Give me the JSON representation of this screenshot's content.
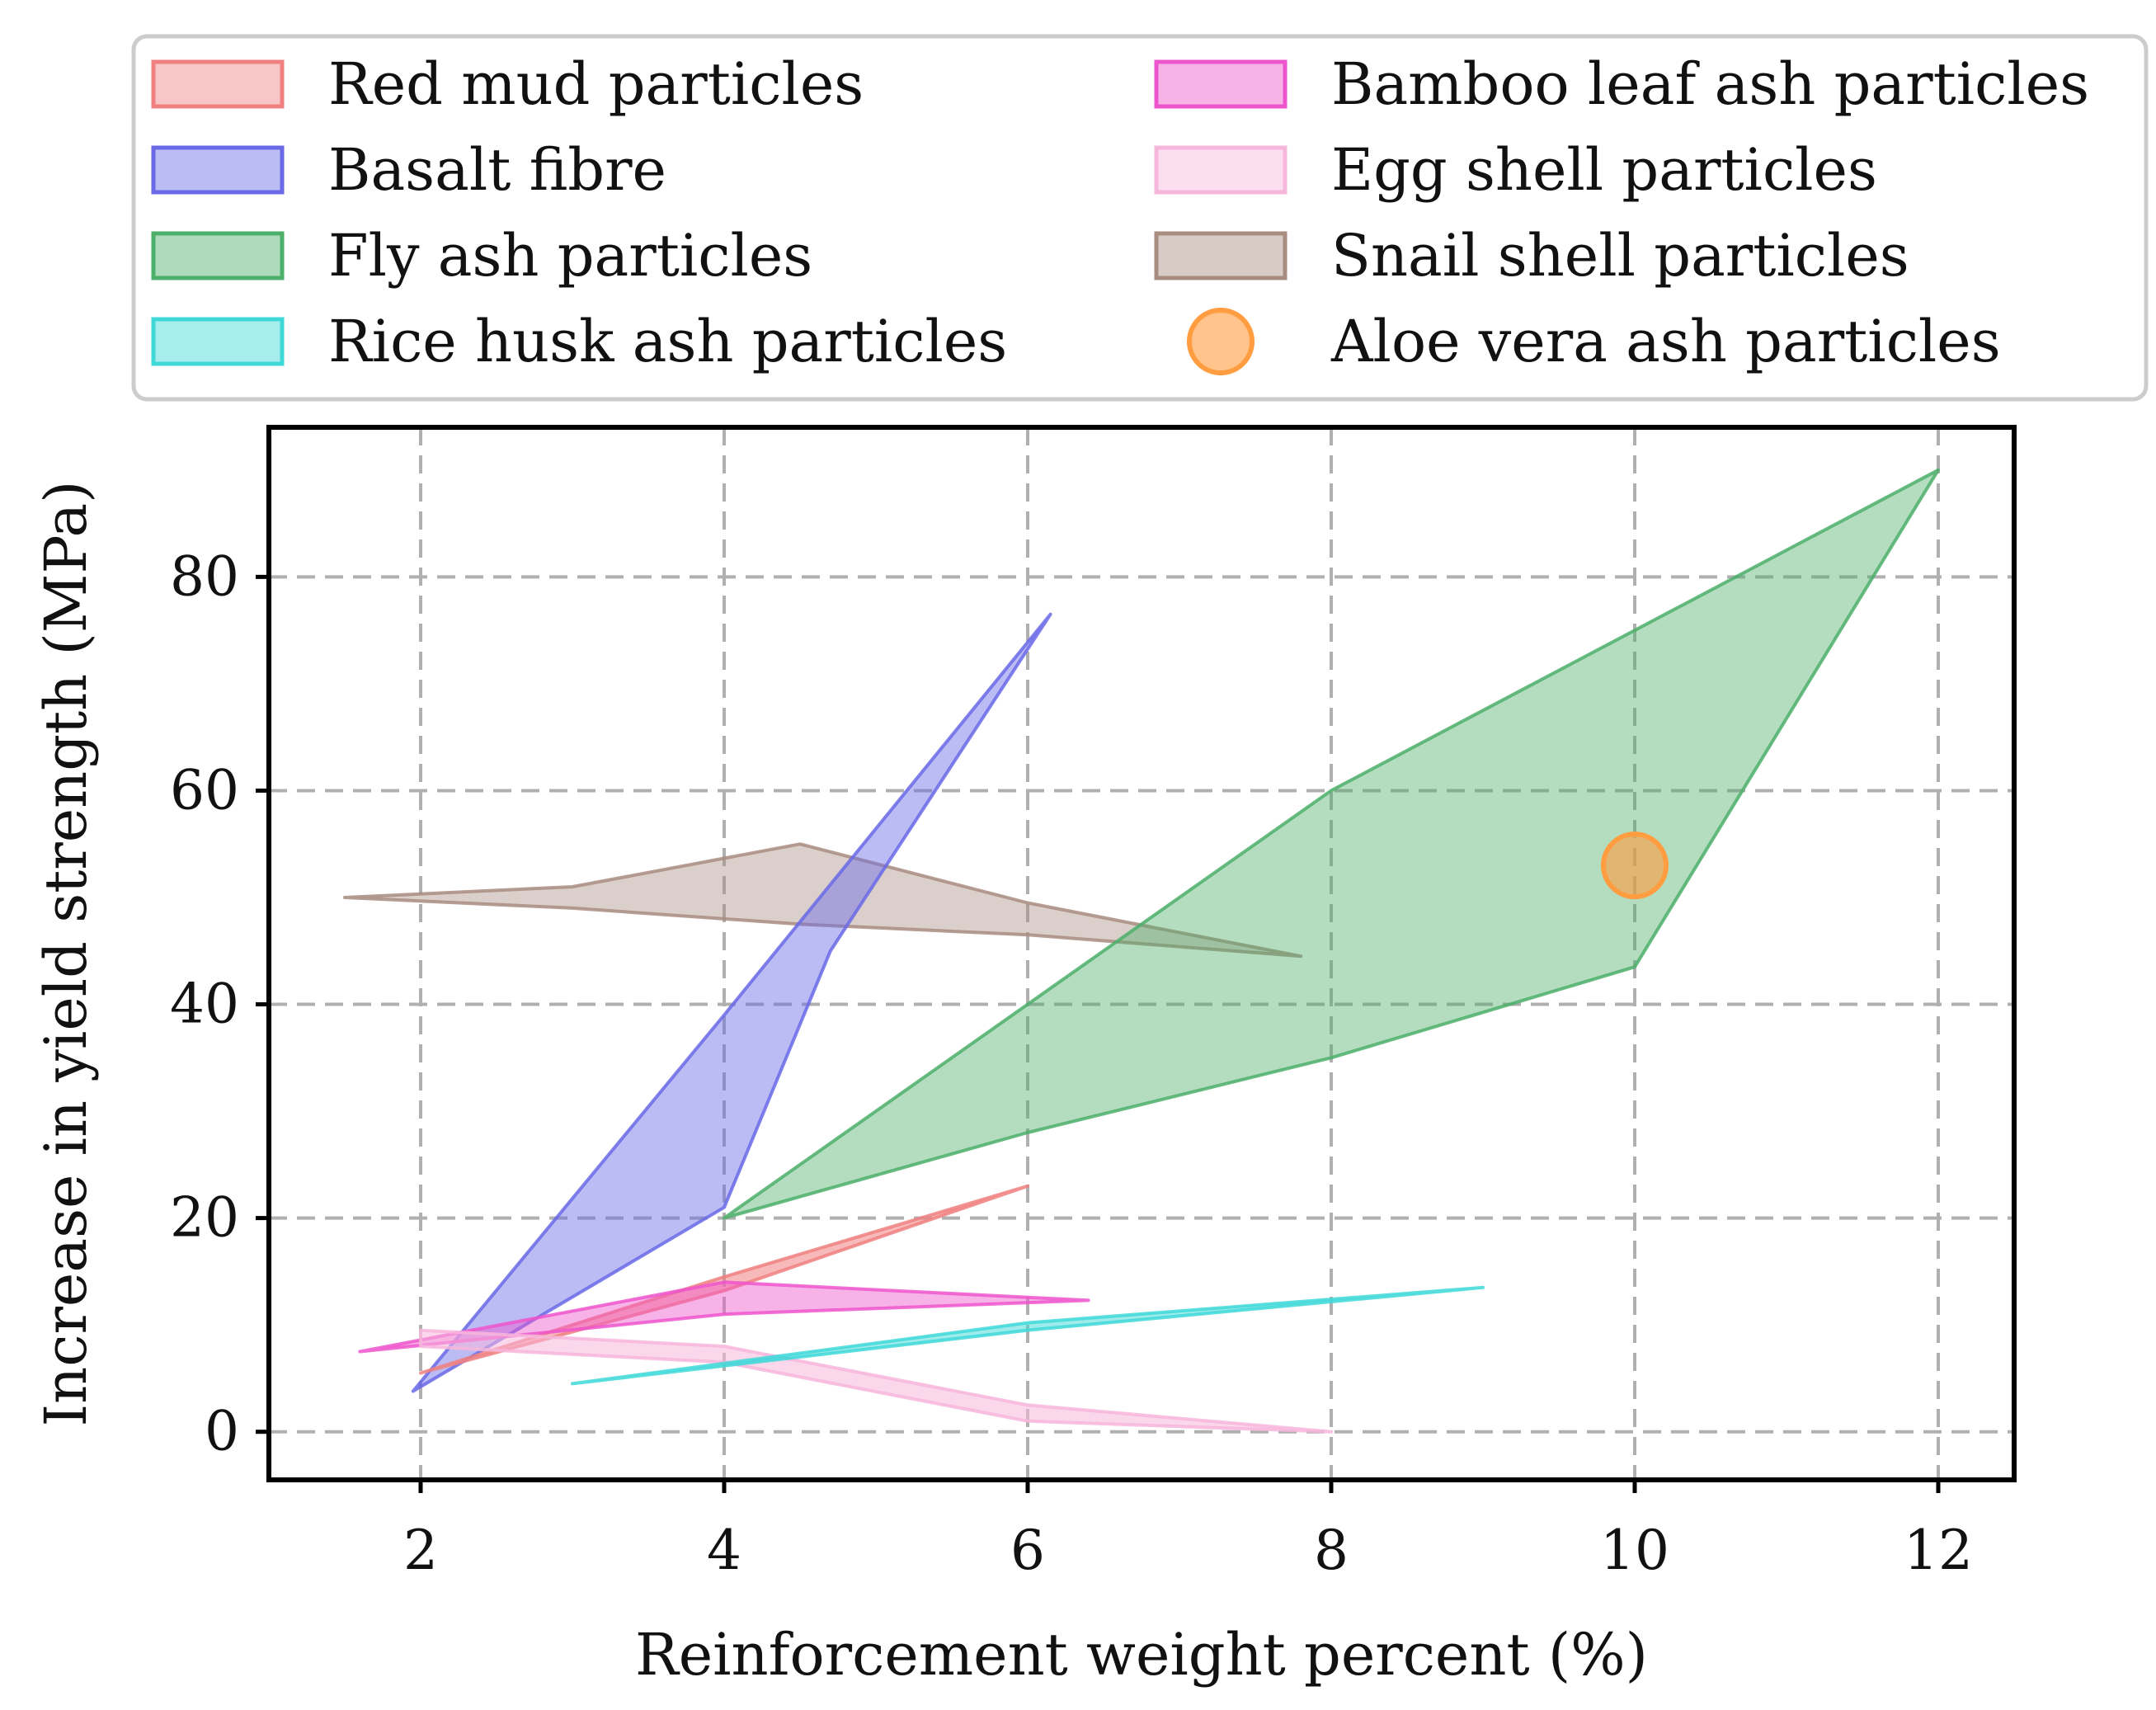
{
  "chart_data": {
    "type": "area",
    "title": "",
    "xlabel": "Reinforcement weight percent (%)",
    "ylabel": "Increase in yield strength (MPa)",
    "xlim": [
      1,
      12.5
    ],
    "ylim": [
      -4.5,
      94
    ],
    "xticks": [
      2,
      4,
      6,
      8,
      10,
      12
    ],
    "yticks": [
      0,
      20,
      40,
      60,
      80
    ],
    "grid": true,
    "legend_position": "top, above plot, two columns",
    "legend": [
      {
        "label": "Red mud particles",
        "color": "#f08080",
        "kind": "patch"
      },
      {
        "label": "Basalt fibre",
        "color": "#6a6ae8",
        "kind": "patch"
      },
      {
        "label": "Fly ash particles",
        "color": "#4caf6a",
        "kind": "patch"
      },
      {
        "label": "Rice husk ash particles",
        "color": "#3ed8d8",
        "kind": "patch"
      },
      {
        "label": "Bamboo leaf ash particles",
        "color": "#ee55cc",
        "kind": "patch"
      },
      {
        "label": "Egg shell particles",
        "color": "#f7b6dc",
        "kind": "patch"
      },
      {
        "label": "Snail shell particles",
        "color": "#a88c80",
        "kind": "patch"
      },
      {
        "label": "Aloe vera ash particles",
        "color": "#ff9d40",
        "kind": "marker"
      }
    ],
    "series": [
      {
        "name": "Snail shell particles",
        "color": "#a88c80",
        "fill_opacity": 0.42,
        "polygon": [
          [
            1.5,
            50
          ],
          [
            3,
            51
          ],
          [
            4.5,
            55
          ],
          [
            6,
            49.5
          ],
          [
            7.8,
            44.5
          ],
          [
            6,
            46.5
          ],
          [
            4.5,
            47.5
          ],
          [
            3,
            49
          ],
          [
            1.5,
            50
          ]
        ]
      },
      {
        "name": "Fly ash particles",
        "color": "#4caf6a",
        "fill_opacity": 0.42,
        "polygon": [
          [
            4,
            20
          ],
          [
            6,
            40
          ],
          [
            8,
            60
          ],
          [
            10,
            75
          ],
          [
            12,
            90
          ],
          [
            10,
            43.5
          ],
          [
            8,
            35
          ],
          [
            6,
            28
          ],
          [
            4,
            20
          ]
        ]
      },
      {
        "name": "Basalt fibre",
        "color": "#6a6ae8",
        "fill_opacity": 0.45,
        "polygon": [
          [
            1.95,
            3.8
          ],
          [
            4,
            39
          ],
          [
            6.15,
            76.5
          ],
          [
            4.7,
            45
          ],
          [
            4,
            21
          ],
          [
            1.95,
            3.8
          ]
        ]
      },
      {
        "name": "Red mud particles",
        "color": "#f08080",
        "fill_opacity": 0.55,
        "polygon": [
          [
            2,
            5.5
          ],
          [
            4,
            14.5
          ],
          [
            6,
            23
          ],
          [
            4,
            13.2
          ],
          [
            2,
            5.5
          ]
        ]
      },
      {
        "name": "Bamboo leaf ash particles",
        "color": "#ee55cc",
        "fill_opacity": 0.45,
        "polygon": [
          [
            1.6,
            7.5
          ],
          [
            4,
            14
          ],
          [
            6.4,
            12.3
          ],
          [
            4,
            11
          ],
          [
            1.6,
            7.5
          ]
        ]
      },
      {
        "name": "Egg shell particles",
        "color": "#f7b6dc",
        "fill_opacity": 0.55,
        "polygon": [
          [
            2,
            9.5
          ],
          [
            4,
            8
          ],
          [
            6,
            2.5
          ],
          [
            8,
            0
          ],
          [
            6,
            1
          ],
          [
            4,
            6.5
          ],
          [
            2,
            8
          ],
          [
            2,
            9.5
          ]
        ]
      },
      {
        "name": "Rice husk ash particles",
        "color": "#3ed8d8",
        "fill_opacity": 0.5,
        "polygon": [
          [
            3,
            4.5
          ],
          [
            6,
            10.2
          ],
          [
            9,
            13.5
          ],
          [
            6,
            9.5
          ],
          [
            3,
            4.5
          ]
        ]
      }
    ],
    "points": [
      {
        "name": "Aloe vera ash particles",
        "x": 10,
        "y": 53,
        "color": "#ff9d40"
      }
    ]
  }
}
